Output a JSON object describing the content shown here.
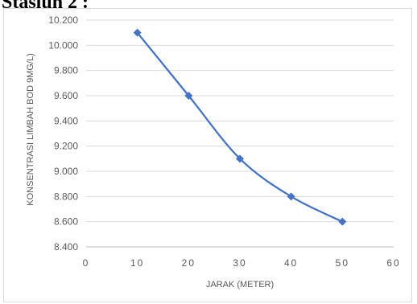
{
  "page": {
    "heading": "Stasiun 2 :"
  },
  "chart_data": {
    "type": "line",
    "title": "",
    "xlabel": "JARAK (METER)",
    "ylabel": "KONSENTRASI LIMBAH BOD 9MG/L)",
    "x_ticks": [
      "0",
      "10",
      "20",
      "30",
      "40",
      "50",
      "60"
    ],
    "y_ticks": [
      "8.400",
      "8.600",
      "8.800",
      "9.000",
      "9.200",
      "9.400",
      "9.600",
      "9.800",
      "10.000",
      "10.200"
    ],
    "xlim": [
      0,
      60
    ],
    "ylim": [
      8.4,
      10.2
    ],
    "grid": "horizontal",
    "legend": "none",
    "series": [
      {
        "x": [
          10,
          20,
          30,
          40,
          50
        ],
        "y": [
          10.1,
          9.6,
          9.1,
          8.8,
          8.6
        ],
        "color": "#4472c4",
        "marker": "diamond",
        "smooth": true
      }
    ]
  }
}
